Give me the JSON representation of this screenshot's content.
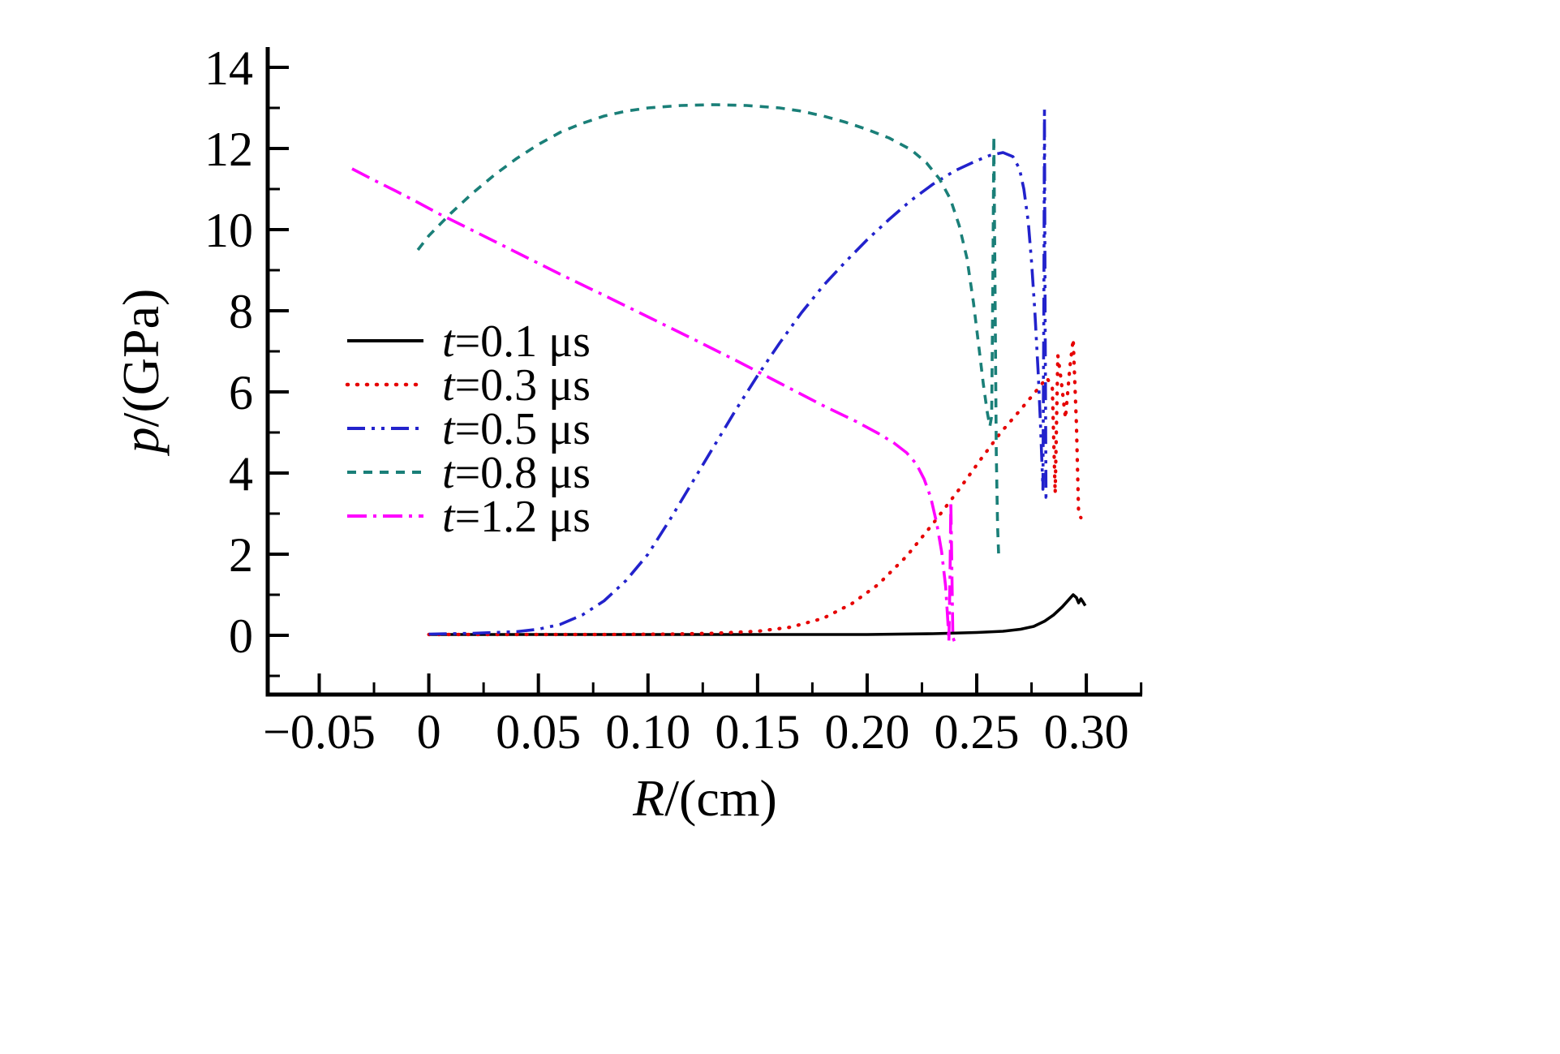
{
  "figure": {
    "background": "#ffffff"
  },
  "chart_data": {
    "type": "line",
    "title": "",
    "xlabel": {
      "sym": "R",
      "rest": "/(cm)"
    },
    "ylabel": {
      "sym": "p",
      "rest": "/(GPa)"
    },
    "xlim": [
      -0.0735,
      0.3255
    ],
    "ylim": [
      -1.46,
      14.5
    ],
    "x_ticks": [
      -0.05,
      0,
      0.05,
      0.1,
      0.15,
      0.2,
      0.25,
      0.3
    ],
    "x_tick_labels": [
      "−0.05",
      "0",
      "0.05",
      "0.10",
      "0.15",
      "0.20",
      "0.25",
      "0.30"
    ],
    "x_minor_step": 0.025,
    "y_ticks": [
      0,
      2,
      4,
      6,
      8,
      10,
      12,
      14
    ],
    "y_tick_labels": [
      "0",
      "2",
      "4",
      "6",
      "8",
      "10",
      "12",
      "14"
    ],
    "y_minor_step": 1,
    "grid": "off",
    "legend_position": "inside-center-left",
    "axis_color": "#000000",
    "series": [
      {
        "id": "t-0-1",
        "label_sym": "t",
        "label_rest": "=0.1 μs",
        "color": "#000000",
        "style": "solid",
        "points": [
          [
            0,
            0.02
          ],
          [
            0.04,
            0.02
          ],
          [
            0.08,
            0.02
          ],
          [
            0.12,
            0.02
          ],
          [
            0.16,
            0.02
          ],
          [
            0.2,
            0.02
          ],
          [
            0.23,
            0.04
          ],
          [
            0.25,
            0.07
          ],
          [
            0.262,
            0.1
          ],
          [
            0.27,
            0.15
          ],
          [
            0.276,
            0.22
          ],
          [
            0.281,
            0.35
          ],
          [
            0.285,
            0.5
          ],
          [
            0.289,
            0.7
          ],
          [
            0.292,
            0.88
          ],
          [
            0.294,
            1.0
          ],
          [
            0.2955,
            0.93
          ],
          [
            0.2965,
            0.8
          ],
          [
            0.2975,
            0.9
          ],
          [
            0.2985,
            0.82
          ],
          [
            0.2995,
            0.73
          ]
        ]
      },
      {
        "id": "t-0-3",
        "label_sym": "t",
        "label_rest": "=0.3 μs",
        "color": "#e60000",
        "style": "dotted",
        "points": [
          [
            0,
            0.02
          ],
          [
            0.04,
            0.02
          ],
          [
            0.08,
            0.02
          ],
          [
            0.11,
            0.03
          ],
          [
            0.13,
            0.05
          ],
          [
            0.15,
            0.1
          ],
          [
            0.165,
            0.2
          ],
          [
            0.18,
            0.42
          ],
          [
            0.193,
            0.78
          ],
          [
            0.205,
            1.25
          ],
          [
            0.218,
            1.95
          ],
          [
            0.23,
            2.75
          ],
          [
            0.242,
            3.6
          ],
          [
            0.252,
            4.35
          ],
          [
            0.261,
            5.0
          ],
          [
            0.269,
            5.5
          ],
          [
            0.276,
            5.95
          ],
          [
            0.282,
            6.35
          ],
          [
            0.2845,
            6.1
          ],
          [
            0.2858,
            3.5
          ],
          [
            0.287,
            6.9
          ],
          [
            0.2885,
            6.3
          ],
          [
            0.2905,
            5.35
          ],
          [
            0.2925,
            6.6
          ],
          [
            0.294,
            7.3
          ],
          [
            0.2955,
            5.2
          ],
          [
            0.2965,
            3.0
          ],
          [
            0.2975,
            2.9
          ]
        ]
      },
      {
        "id": "t-0-5",
        "label_sym": "t",
        "label_rest": "=0.5 μs",
        "color": "#2222cc",
        "style": "dash-dot-dot",
        "points": [
          [
            0,
            0.03
          ],
          [
            0.02,
            0.05
          ],
          [
            0.04,
            0.09
          ],
          [
            0.05,
            0.15
          ],
          [
            0.06,
            0.27
          ],
          [
            0.07,
            0.5
          ],
          [
            0.08,
            0.85
          ],
          [
            0.09,
            1.35
          ],
          [
            0.1,
            2.0
          ],
          [
            0.11,
            2.85
          ],
          [
            0.12,
            3.75
          ],
          [
            0.13,
            4.65
          ],
          [
            0.14,
            5.55
          ],
          [
            0.15,
            6.4
          ],
          [
            0.16,
            7.2
          ],
          [
            0.17,
            7.95
          ],
          [
            0.18,
            8.62
          ],
          [
            0.19,
            9.2
          ],
          [
            0.2,
            9.75
          ],
          [
            0.21,
            10.25
          ],
          [
            0.22,
            10.72
          ],
          [
            0.23,
            11.12
          ],
          [
            0.24,
            11.45
          ],
          [
            0.25,
            11.7
          ],
          [
            0.256,
            11.83
          ],
          [
            0.262,
            11.9
          ],
          [
            0.2665,
            11.8
          ],
          [
            0.2695,
            11.5
          ],
          [
            0.2715,
            11.0
          ],
          [
            0.2735,
            10.2
          ],
          [
            0.275,
            9.2
          ],
          [
            0.2765,
            8.0
          ],
          [
            0.278,
            6.5
          ],
          [
            0.279,
            5.3
          ],
          [
            0.2797,
            4.3
          ],
          [
            0.2802,
            3.6
          ],
          [
            0.2806,
            8.0
          ],
          [
            0.2809,
            13.0
          ],
          [
            0.2812,
            8.0
          ],
          [
            0.2816,
            3.4
          ],
          [
            0.2825,
            3.5
          ]
        ]
      },
      {
        "id": "t-0-8",
        "label_sym": "t",
        "label_rest": "=0.8 μs",
        "color": "#1a7f78",
        "style": "dashed",
        "points": [
          [
            -0.005,
            9.5
          ],
          [
            0,
            9.85
          ],
          [
            0.01,
            10.4
          ],
          [
            0.02,
            10.9
          ],
          [
            0.03,
            11.35
          ],
          [
            0.04,
            11.75
          ],
          [
            0.05,
            12.1
          ],
          [
            0.06,
            12.4
          ],
          [
            0.07,
            12.62
          ],
          [
            0.08,
            12.8
          ],
          [
            0.09,
            12.92
          ],
          [
            0.1,
            13.0
          ],
          [
            0.115,
            13.06
          ],
          [
            0.13,
            13.08
          ],
          [
            0.145,
            13.06
          ],
          [
            0.16,
            13.0
          ],
          [
            0.17,
            12.92
          ],
          [
            0.18,
            12.8
          ],
          [
            0.19,
            12.65
          ],
          [
            0.2,
            12.47
          ],
          [
            0.21,
            12.26
          ],
          [
            0.22,
            11.97
          ],
          [
            0.227,
            11.65
          ],
          [
            0.233,
            11.25
          ],
          [
            0.238,
            10.75
          ],
          [
            0.242,
            10.1
          ],
          [
            0.2455,
            9.3
          ],
          [
            0.2485,
            8.2
          ],
          [
            0.251,
            7.1
          ],
          [
            0.253,
            6.2
          ],
          [
            0.2548,
            5.5
          ],
          [
            0.256,
            5.15
          ],
          [
            0.2568,
            5.4
          ],
          [
            0.2574,
            9.0
          ],
          [
            0.2578,
            12.3
          ],
          [
            0.2583,
            9.0
          ],
          [
            0.2589,
            4.5
          ],
          [
            0.2595,
            2.7
          ],
          [
            0.26,
            2.0
          ]
        ]
      },
      {
        "id": "t-1-2",
        "label_sym": "t",
        "label_rest": "=1.2 μs",
        "color": "#ff00ff",
        "style": "dash-dot",
        "points": [
          [
            -0.035,
            11.5
          ],
          [
            -0.025,
            11.22
          ],
          [
            -0.015,
            10.95
          ],
          [
            -0.005,
            10.67
          ],
          [
            0.005,
            10.38
          ],
          [
            0.02,
            9.98
          ],
          [
            0.04,
            9.44
          ],
          [
            0.06,
            8.9
          ],
          [
            0.08,
            8.38
          ],
          [
            0.1,
            7.85
          ],
          [
            0.12,
            7.32
          ],
          [
            0.14,
            6.78
          ],
          [
            0.16,
            6.22
          ],
          [
            0.18,
            5.66
          ],
          [
            0.195,
            5.27
          ],
          [
            0.205,
            4.98
          ],
          [
            0.212,
            4.75
          ],
          [
            0.218,
            4.5
          ],
          [
            0.2225,
            4.22
          ],
          [
            0.226,
            3.85
          ],
          [
            0.229,
            3.4
          ],
          [
            0.2318,
            2.75
          ],
          [
            0.234,
            2.05
          ],
          [
            0.2358,
            1.2
          ],
          [
            0.2368,
            0.35
          ],
          [
            0.2373,
            -0.15
          ],
          [
            0.2378,
            1.5
          ],
          [
            0.2382,
            3.3
          ],
          [
            0.2387,
            1.4
          ],
          [
            0.2391,
            -0.05
          ],
          [
            0.2398,
            -0.15
          ]
        ]
      }
    ]
  }
}
